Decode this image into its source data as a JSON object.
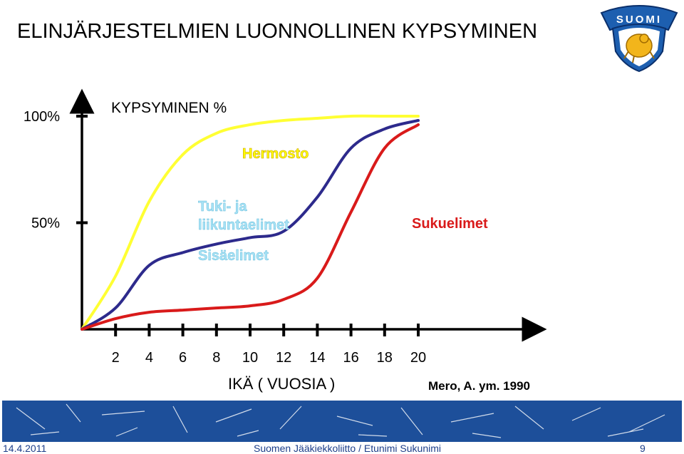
{
  "header": {
    "title": "ELINJÄRJESTELMIEN LUONNOLLINEN KYPSYMINEN",
    "logo_text": "SUOMI"
  },
  "chart_data": {
    "type": "line",
    "ylabel": "KYPSYMINEN %",
    "xlabel": "IKÄ ( VUOSIA )",
    "y_ticks": [
      "50%",
      "100%"
    ],
    "x_ticks": [
      "2",
      "4",
      "6",
      "8",
      "10",
      "12",
      "14",
      "16",
      "18",
      "20"
    ],
    "xlim": [
      0,
      20
    ],
    "ylim": [
      0,
      100
    ],
    "source": "Mero, A. ym. 1990",
    "series": [
      {
        "name": "Hermosto",
        "color": "#ffff33",
        "label_color": "#ffff00",
        "x": [
          0,
          2,
          4,
          6,
          8,
          10,
          12,
          14,
          16,
          18,
          20
        ],
        "y": [
          0,
          25,
          60,
          82,
          92,
          96,
          98,
          99,
          100,
          100,
          100
        ]
      },
      {
        "name": "Tuki- ja liikuntaelimet",
        "color": "#2d2a8c",
        "label_color": "#a7e2f5",
        "x": [
          0,
          2,
          4,
          6,
          8,
          10,
          12,
          14,
          16,
          18,
          20
        ],
        "y": [
          0,
          10,
          30,
          36,
          40,
          43,
          46,
          62,
          85,
          94,
          98
        ]
      },
      {
        "name": "Sisäelimet",
        "color": "#a7e2f5",
        "label_color": "#a7e2f5",
        "x": [],
        "y": []
      },
      {
        "name": "Sukuelimet",
        "color": "#d91a1a",
        "label_color": "#d91a1a",
        "x": [
          0,
          2,
          4,
          6,
          8,
          10,
          12,
          14,
          16,
          18,
          20
        ],
        "y": [
          0,
          5,
          8,
          9,
          10,
          11,
          14,
          24,
          55,
          85,
          96
        ]
      }
    ]
  },
  "footer": {
    "date": "14.4.2011",
    "org": "Suomen Jääkiekkoliitto / Etunimi Sukunimi",
    "page": "9"
  }
}
